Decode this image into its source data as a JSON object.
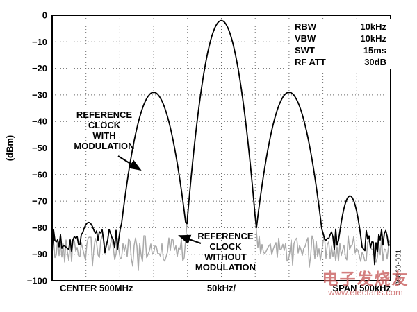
{
  "chart_data": {
    "type": "line",
    "ylabel": "(dBm)",
    "x_axis": {
      "center_label": "CENTER 500MHz",
      "scale_label": "50kHz/",
      "span_label": "SPAN 500kHz"
    },
    "x_range_khz": [
      -250,
      250
    ],
    "ylim": [
      -100,
      0
    ],
    "y_tick_labels": [
      "0",
      "−10",
      "−20",
      "−30",
      "−40",
      "−50",
      "−60",
      "−70",
      "−80",
      "−90",
      "−100"
    ],
    "grid": {
      "x_divisions": 10,
      "y_divisions": 10
    },
    "settings": [
      {
        "label": "RBW",
        "value": "10kHz"
      },
      {
        "label": "VBW",
        "value": "10kHz"
      },
      {
        "label": "SWT",
        "value": "15ms"
      },
      {
        "label": "RF ATT",
        "value": "30dB"
      }
    ],
    "series": [
      {
        "name": "reference-clock-with-modulation",
        "color": "#000000",
        "noise_floor_dbm": -85,
        "noise_jitter_db": 4.5,
        "seed": 7,
        "peaks": [
          {
            "center_khz": 0,
            "top_dbm": -2,
            "k": 0.0296
          },
          {
            "center_khz": -100,
            "top_dbm": -29,
            "k": 0.022
          },
          {
            "center_khz": 100,
            "top_dbm": -29,
            "k": 0.022
          },
          {
            "center_khz": 190,
            "top_dbm": -68,
            "k": 0.06
          },
          {
            "center_khz": -196,
            "top_dbm": -78,
            "k": 0.05
          }
        ]
      },
      {
        "name": "reference-clock-without-modulation",
        "color": "#a9a9a9",
        "noise_floor_dbm": -88,
        "noise_jitter_db": 5,
        "seed": 42,
        "peaks": [
          {
            "center_khz": 0,
            "top_dbm": -2,
            "k": 0.0296
          }
        ]
      }
    ],
    "annotations": [
      {
        "text": "REFERENCE\nCLOCK\nWITH\nMODULATION"
      },
      {
        "text": "REFERENCE\nCLOCK\nWITHOUT\nMODULATION"
      }
    ]
  },
  "figure_number": "06860-001",
  "watermark": {
    "line1": "电子发烧友",
    "line2": "www.elecfans.com"
  }
}
